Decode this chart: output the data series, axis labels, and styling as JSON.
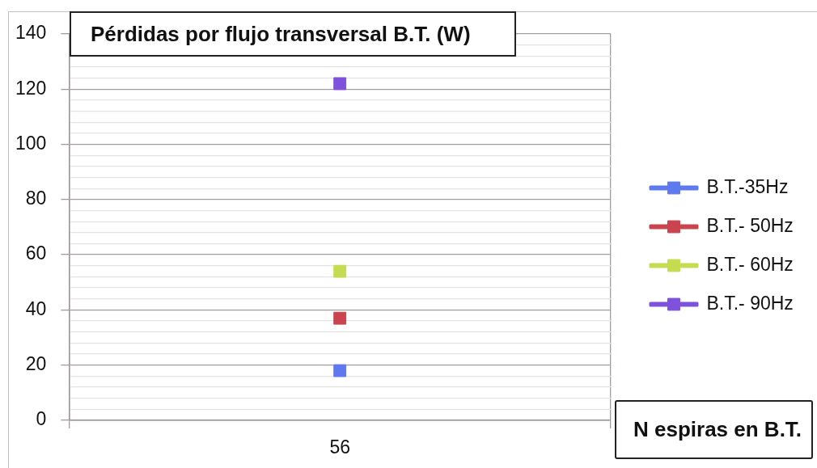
{
  "chart_data": {
    "type": "line",
    "title": "Pérdidas por flujo transversal B.T. (W)",
    "xlabel": "N espiras en B.T.",
    "categories": [
      "56"
    ],
    "series": [
      {
        "name": "B.T.-35Hz",
        "color": "#5f79ee",
        "values": [
          18
        ]
      },
      {
        "name": "B.T.- 50Hz",
        "color": "#c9444f",
        "values": [
          37
        ]
      },
      {
        "name": "B.T.- 60Hz",
        "color": "#c6dc50",
        "values": [
          54
        ]
      },
      {
        "name": "B.T.- 90Hz",
        "color": "#7e52dd",
        "values": [
          122
        ]
      }
    ],
    "ylim": [
      0,
      140
    ],
    "yticks": [
      0,
      {
        "value": 4,
        "label": null
      },
      {
        "value": 8,
        "label": null
      },
      {
        "value": 12,
        "label": null
      },
      {
        "value": 16,
        "label": null
      },
      20,
      {
        "value": 24,
        "label": null
      },
      {
        "value": 28,
        "label": null
      },
      {
        "value": 32,
        "label": null
      },
      {
        "value": 36,
        "label": null
      },
      40,
      {
        "value": 44,
        "label": null
      },
      {
        "value": 48,
        "label": null
      },
      {
        "value": 52,
        "label": null
      },
      {
        "value": 56,
        "label": null
      },
      60,
      {
        "value": 64,
        "label": null
      },
      {
        "value": 68,
        "label": null
      },
      {
        "value": 72,
        "label": null
      },
      {
        "value": 76,
        "label": null
      },
      80,
      {
        "value": 84,
        "label": null
      },
      {
        "value": 88,
        "label": null
      },
      {
        "value": 92,
        "label": null
      },
      {
        "value": 96,
        "label": null
      },
      100,
      {
        "value": 104,
        "label": null
      },
      {
        "value": 108,
        "label": null
      },
      {
        "value": 112,
        "label": null
      },
      {
        "value": 116,
        "label": null
      },
      120,
      {
        "value": 124,
        "label": null
      },
      {
        "value": 128,
        "label": null
      },
      {
        "value": 132,
        "label": null
      },
      {
        "value": 136,
        "label": null
      },
      140
    ],
    "grid": true,
    "legend": "right",
    "marker": "square"
  }
}
